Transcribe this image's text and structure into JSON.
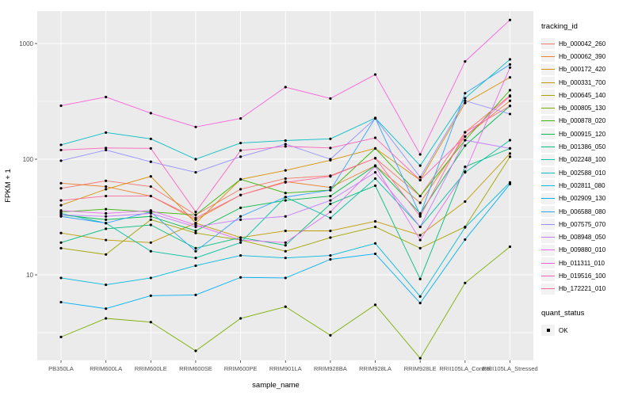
{
  "chart": {
    "xlabel": "sample_name",
    "ylabel": "FPKM + 1",
    "legend_title": "tracking_id",
    "quant_legend": {
      "title": "quant_status",
      "items": [
        {
          "label": "OK"
        }
      ]
    },
    "colors": {
      "panel_bg": "#EBEBEB",
      "grid": "#FFFFFF",
      "tick_text": "#4D4D4D",
      "axis_text": "#000000",
      "point": "#000000",
      "legend_key_bg": "#F2F2F2"
    }
  },
  "chart_data": {
    "type": "line",
    "yscale": "log10",
    "yticks": [
      10,
      100,
      1000
    ],
    "ylim": [
      1.8,
      2000
    ],
    "grid": true,
    "legend_position": "right",
    "marker": "black-point",
    "x_categories": [
      "PB350LA",
      "RRIM600LA",
      "RRIM600LE",
      "RRIM600SE",
      "RRIM600PE",
      "RRIM901LA",
      "RRIM928BA",
      "RRIM928LA",
      "RRIM928LE",
      "RRII105LA_Control",
      "RRII105LA_Stressed"
    ],
    "series": [
      {
        "name": "Hb_000042_260",
        "color": "#F8766D",
        "values": [
          56,
          65,
          58,
          33,
          55,
          68,
          72,
          102,
          48,
          171,
          355
        ]
      },
      {
        "name": "Hb_000062_390",
        "color": "#EA8331",
        "values": [
          62,
          58,
          48,
          30,
          49,
          64,
          57,
          88,
          42,
          157,
          320
        ]
      },
      {
        "name": "Hb_000172_420",
        "color": "#D89000",
        "values": [
          40,
          55,
          71,
          28,
          67,
          80,
          98,
          124,
          66,
          306,
          510
        ]
      },
      {
        "name": "Hb_000331_700",
        "color": "#C09B00",
        "values": [
          23,
          20,
          19,
          28,
          21,
          24,
          24,
          29,
          22,
          43,
          112
        ]
      },
      {
        "name": "Hb_000645_140",
        "color": "#A3A500",
        "values": [
          17,
          15,
          30,
          23,
          20,
          16,
          21,
          26,
          17,
          26,
          105
        ]
      },
      {
        "name": "Hb_000805_130",
        "color": "#7CAE00",
        "values": [
          2.9,
          4.2,
          3.9,
          2.2,
          4.2,
          5.3,
          3.0,
          5.5,
          1.9,
          8.5,
          17.5
        ]
      },
      {
        "name": "Hb_000878_020",
        "color": "#39B600",
        "values": [
          35,
          37,
          35,
          33,
          67,
          51,
          54,
          124,
          48,
          146,
          395
        ]
      },
      {
        "name": "Hb_000915_120",
        "color": "#00BB4E",
        "values": [
          33,
          30,
          32,
          24,
          38,
          44,
          48,
          88,
          34,
          131,
          289
        ]
      },
      {
        "name": "Hb_001386_050",
        "color": "#00BF7D",
        "values": [
          19,
          25,
          27,
          17,
          21,
          18,
          41,
          59,
          9.2,
          86,
          124
        ]
      },
      {
        "name": "Hb_002248_100",
        "color": "#00C1A3",
        "values": [
          34,
          28,
          16,
          14,
          19,
          47,
          31,
          68,
          26,
          77,
          146
        ]
      },
      {
        "name": "Hb_002588_010",
        "color": "#00BFC4",
        "values": [
          133,
          170,
          150,
          100,
          138,
          145,
          150,
          227,
          88,
          337,
          730
        ]
      },
      {
        "name": "Hb_002811_080",
        "color": "#00BAE0",
        "values": [
          9.4,
          8.2,
          9.4,
          12,
          14.7,
          14,
          14.7,
          18.7,
          6.5,
          25.7,
          63
        ]
      },
      {
        "name": "Hb_002909_130",
        "color": "#00B0F6",
        "values": [
          5.8,
          5.1,
          6.6,
          6.7,
          9.5,
          9.4,
          13.6,
          15.2,
          5.7,
          20.2,
          61
        ]
      },
      {
        "name": "Hb_006588_080",
        "color": "#35A2FF",
        "values": [
          32,
          28,
          35,
          16,
          32,
          47,
          54,
          227,
          33,
          372,
          660
        ]
      },
      {
        "name": "Hb_007575_070",
        "color": "#9590FF",
        "values": [
          97,
          120,
          95,
          77,
          105,
          135,
          100,
          225,
          70,
          320,
          246
        ]
      },
      {
        "name": "Hb_008948_050",
        "color": "#C77CFF",
        "values": [
          33,
          32,
          34,
          26,
          30,
          32,
          44,
          77,
          26,
          146,
          124
        ]
      },
      {
        "name": "Hb_009880_010",
        "color": "#E76BF3",
        "values": [
          36,
          34,
          36,
          27,
          20,
          19,
          35,
          87,
          20,
          78,
          620
        ]
      },
      {
        "name": "Hb_011311_010",
        "color": "#FA62DB",
        "values": [
          290,
          345,
          250,
          190,
          225,
          420,
          335,
          540,
          110,
          700,
          1600
        ]
      },
      {
        "name": "Hb_019516_100",
        "color": "#FF62BC",
        "values": [
          120,
          125,
          124,
          35,
          119,
          129,
          125,
          153,
          66,
          157,
          350
        ]
      },
      {
        "name": "Hb_172221_010",
        "color": "#FF6A98",
        "values": [
          44,
          48,
          48,
          31,
          49,
          63,
          71,
          102,
          32,
          171,
          289
        ]
      }
    ]
  }
}
